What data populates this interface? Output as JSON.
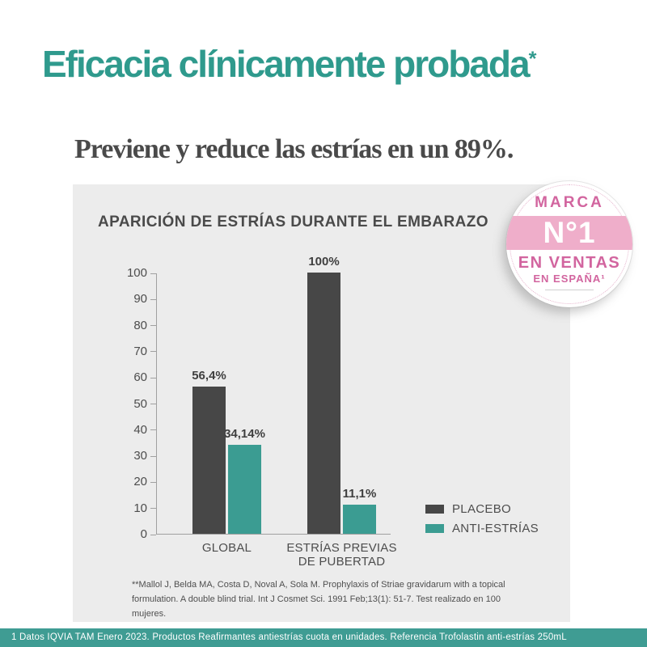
{
  "header": {
    "title": "Eficacia clínicamente probada",
    "title_superscript": "*",
    "subtitle": "Previene y reduce las estrías en un 89%."
  },
  "badge": {
    "line1": "MARCA",
    "line2": "N°1",
    "line3": "EN VENTAS",
    "line4": "EN ESPAÑA¹",
    "band_color": "#efaeca",
    "text_color": "#d2659f"
  },
  "chart_data": {
    "type": "bar",
    "title": "APARICIÓN DE ESTRÍAS DURANTE EL EMBARAZO",
    "categories": [
      "GLOBAL",
      "ESTRÍAS PREVIAS\nDE PUBERTAD"
    ],
    "series": [
      {
        "name": "PLACEBO",
        "color": "#474747",
        "values": [
          56.4,
          100
        ],
        "value_labels": [
          "56,4%",
          "100%"
        ]
      },
      {
        "name": "ANTI-ESTRÍAS",
        "color": "#3b9c92",
        "values": [
          34.14,
          11.1
        ],
        "value_labels": [
          "34,14%",
          "11,1%"
        ]
      }
    ],
    "xlabel": "",
    "ylabel": "",
    "ylim": [
      0,
      100
    ],
    "yticks": [
      0,
      10,
      20,
      30,
      40,
      50,
      60,
      70,
      80,
      90,
      100
    ],
    "grid": false,
    "legend_position": "bottom-right",
    "panel_background": "#ececec"
  },
  "footnote": "**Mallol J, Belda MA, Costa D, Noval A, Sola M. Prophylaxis of Striae gravidarum with a topical formulation. A double blind trial. Int J Cosmet Sci. 1991 Feb;13(1): 51-7. Test realizado en 100 mujeres.",
  "footer": {
    "text": "1 Datos IQVIA TAM Enero 2023. Productos Reafirmantes antiestrías cuota en unidades. Referencia Trofolastin anti-estrías 250mL",
    "background": "#3f9c93"
  },
  "colors": {
    "heading_teal": "#2f9a8d",
    "bar_teal": "#3b9c92",
    "bar_dark": "#474747",
    "subtitle_gray": "#4a4a4a"
  }
}
